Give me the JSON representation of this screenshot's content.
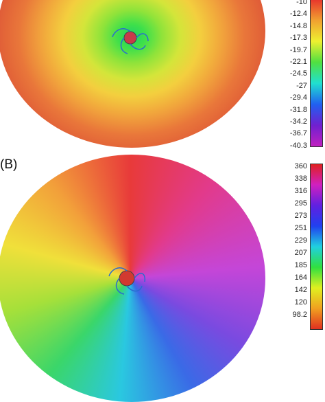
{
  "panels": [
    {
      "colorbar_labels": [
        "-10",
        "-12.4",
        "-14.8",
        "-17.3",
        "-19.7",
        "-22.1",
        "-24.5",
        "-27",
        "-29.4",
        "-31.8",
        "-34.2",
        "-36.7",
        "-40.3"
      ]
    },
    {
      "label": "(B)",
      "colorbar_labels": [
        "360",
        "338",
        "316",
        "295",
        "273",
        "251",
        "229",
        "207",
        "185",
        "164",
        "142",
        "120",
        "98.2"
      ]
    }
  ]
}
